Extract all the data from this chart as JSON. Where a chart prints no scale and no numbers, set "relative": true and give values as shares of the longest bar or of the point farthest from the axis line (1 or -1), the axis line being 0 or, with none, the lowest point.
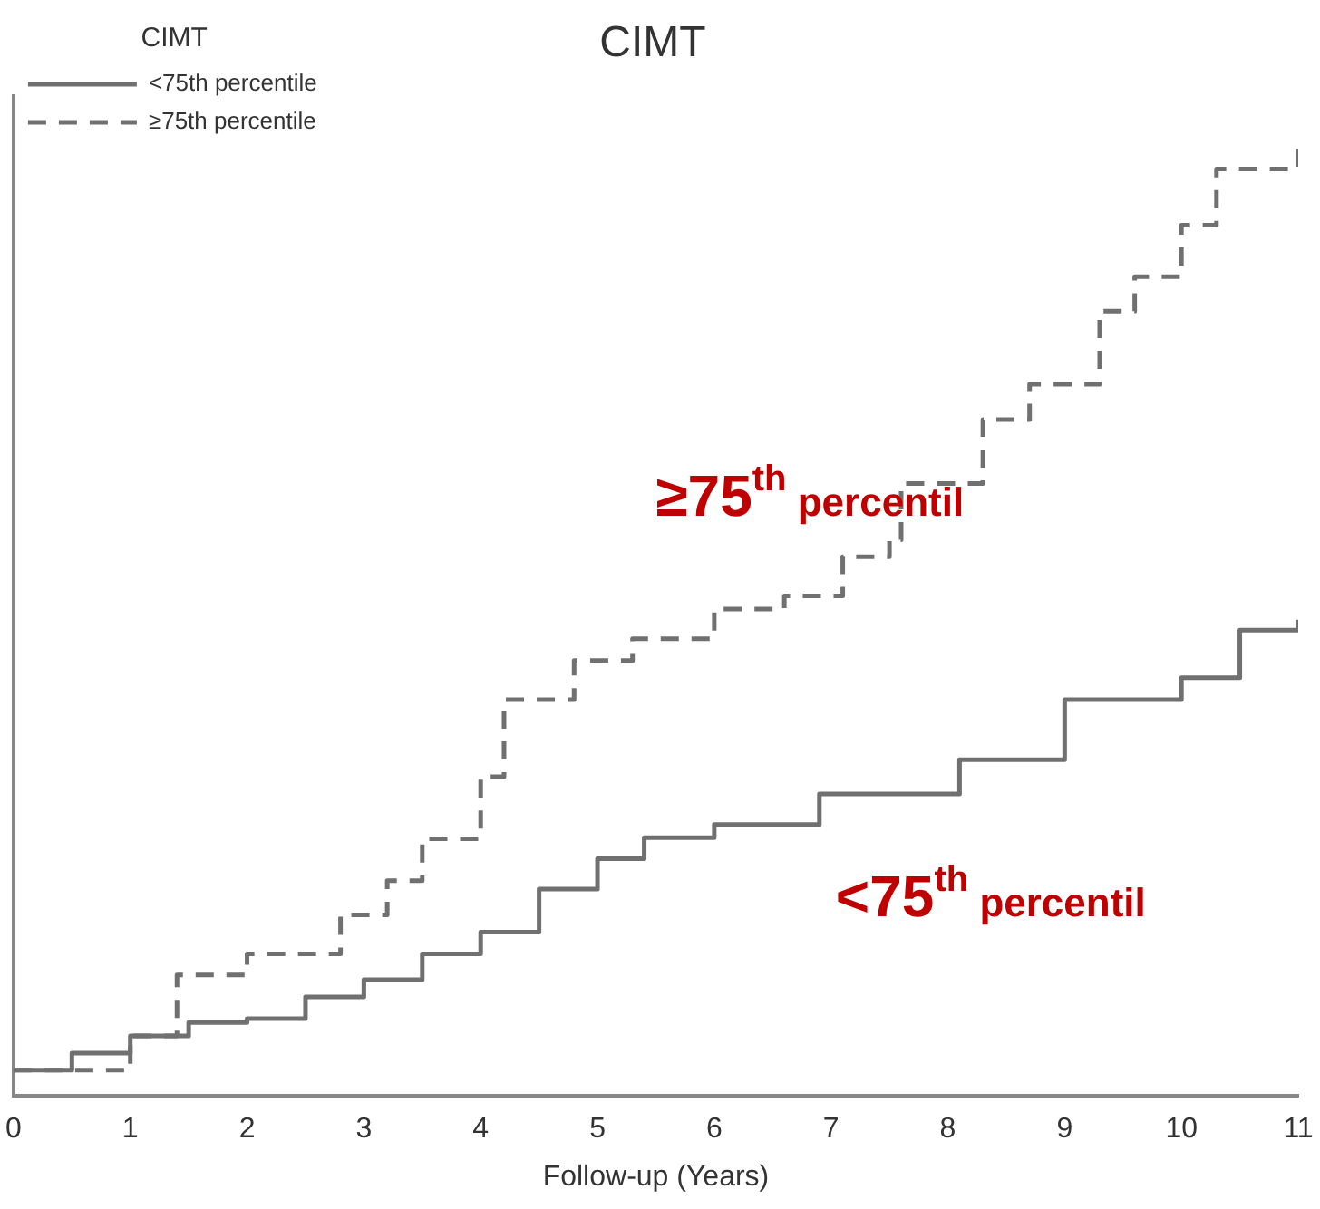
{
  "chart_data": {
    "type": "step",
    "title": "CIMT",
    "xlabel": "Follow-up (Years)",
    "legend_title": "CIMT",
    "relative": true,
    "xlim": [
      0,
      11
    ],
    "xticks": [
      0,
      1,
      2,
      3,
      4,
      5,
      6,
      7,
      8,
      9,
      10,
      11
    ],
    "legend": "top left",
    "grid": false,
    "marker": "none",
    "series": [
      {
        "name": "<75th percentile",
        "color": "#707070",
        "line_style": "solid",
        "x": [
          0,
          0.5,
          1,
          1.5,
          2,
          2.5,
          3,
          3.5,
          4,
          4.5,
          5,
          5.4,
          6,
          6.9,
          8.1,
          9,
          10,
          10.5,
          11
        ],
        "values": [
          0.027,
          0.045,
          0.063,
          0.077,
          0.081,
          0.104,
          0.122,
          0.149,
          0.172,
          0.217,
          0.249,
          0.271,
          0.285,
          0.317,
          0.353,
          0.416,
          0.439,
          0.489,
          0.5
        ]
      },
      {
        "name": "≥75th percentile",
        "color": "#707070",
        "line_style": "dashed",
        "x": [
          0,
          1,
          1.4,
          2,
          2.8,
          3.2,
          3.5,
          4,
          4.2,
          4.8,
          5.3,
          6,
          6.6,
          7.1,
          7.5,
          7.6,
          8.3,
          8.7,
          9.3,
          9.6,
          10,
          10.3,
          11
        ],
        "values": [
          0.027,
          0.063,
          0.127,
          0.149,
          0.19,
          0.226,
          0.27,
          0.335,
          0.416,
          0.457,
          0.48,
          0.511,
          0.525,
          0.566,
          0.584,
          0.643,
          0.71,
          0.747,
          0.824,
          0.86,
          0.914,
          0.973,
          1
        ]
      }
    ],
    "annotations": [
      "≥75$^{th}$ percentil",
      "<75$^{th}$ percentil"
    ]
  }
}
